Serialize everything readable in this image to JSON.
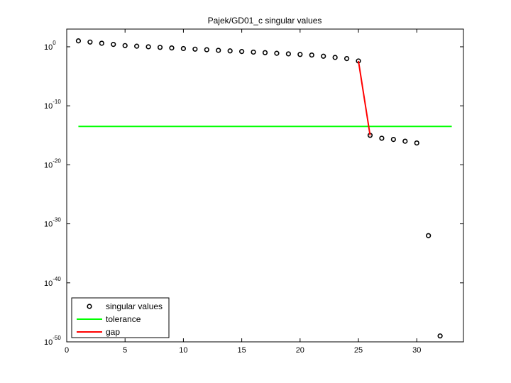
{
  "chart_data": {
    "type": "scatter",
    "title": "Pajek/GD01_c singular values",
    "xlabel": "",
    "ylabel": "",
    "xlim": [
      0,
      34
    ],
    "ylim_exponent": [
      -50,
      3
    ],
    "yscale": "log",
    "x_ticks": [
      0,
      5,
      10,
      15,
      20,
      25,
      30
    ],
    "y_ticks": [
      {
        "exp": 0,
        "mant": "10",
        "sup": "0"
      },
      {
        "exp": -10,
        "mant": "10",
        "sup": "-10"
      },
      {
        "exp": -20,
        "mant": "10",
        "sup": "-20"
      },
      {
        "exp": -30,
        "mant": "10",
        "sup": "-30"
      },
      {
        "exp": -40,
        "mant": "10",
        "sup": "-40"
      },
      {
        "exp": -50,
        "mant": "10",
        "sup": "-50"
      }
    ],
    "grid": false,
    "legend_position": "bottom-left",
    "series": [
      {
        "name": "singular values",
        "kind": "markers",
        "color": "#000000",
        "x": [
          1,
          2,
          3,
          4,
          5,
          6,
          7,
          8,
          9,
          10,
          11,
          12,
          13,
          14,
          15,
          16,
          17,
          18,
          19,
          20,
          21,
          22,
          23,
          24,
          25,
          26,
          27,
          28,
          29,
          30,
          31,
          32
        ],
        "log10_y": [
          1.0,
          0.8,
          0.6,
          0.4,
          0.2,
          0.1,
          0.0,
          -0.1,
          -0.2,
          -0.3,
          -0.4,
          -0.5,
          -0.6,
          -0.7,
          -0.8,
          -0.9,
          -1.0,
          -1.1,
          -1.2,
          -1.3,
          -1.4,
          -1.6,
          -1.8,
          -2.0,
          -2.4,
          -15.0,
          -15.5,
          -15.7,
          -16.0,
          -16.3,
          -32.0,
          -49.0
        ]
      },
      {
        "name": "tolerance",
        "kind": "line",
        "color": "#00ff00",
        "x": [
          1,
          33
        ],
        "log10_y": [
          -13.5,
          -13.5
        ]
      },
      {
        "name": "gap",
        "kind": "line",
        "color": "#ff0000",
        "x": [
          25,
          26
        ],
        "log10_y": [
          -2.4,
          -15.0
        ]
      }
    ]
  }
}
